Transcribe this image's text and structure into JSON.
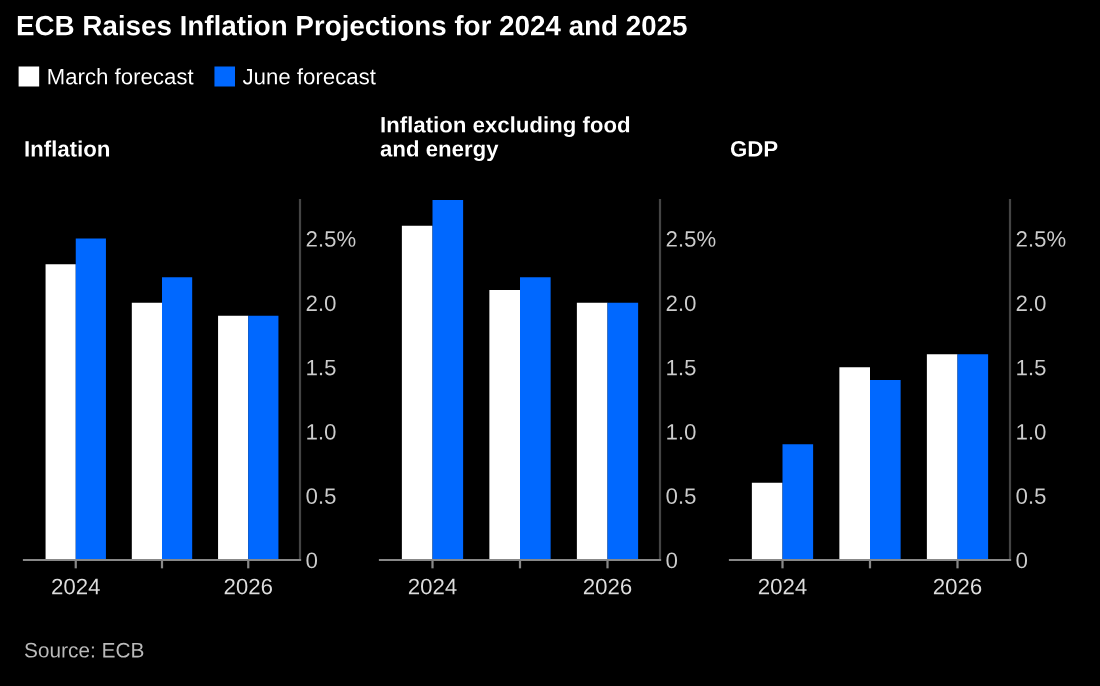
{
  "chart_data": [
    {
      "type": "bar",
      "title": "Inflation",
      "categories": [
        "2024",
        null,
        "2026"
      ],
      "series": [
        {
          "name": "March forecast",
          "color": "#ffffff",
          "values": [
            2.3,
            2.0,
            1.9
          ]
        },
        {
          "name": "June forecast",
          "color": "#0068ff",
          "values": [
            2.5,
            2.2,
            1.9
          ]
        }
      ],
      "ylim": [
        0,
        2.8
      ],
      "yticks": [
        {
          "value": 0,
          "label": "0"
        },
        {
          "value": 0.5,
          "label": "0.5"
        },
        {
          "value": 1.0,
          "label": "1.0"
        },
        {
          "value": 1.5,
          "label": "1.5"
        },
        {
          "value": 2.0,
          "label": "2.0"
        },
        {
          "value": 2.5,
          "label": "2.5%"
        }
      ],
      "legend": "top",
      "annotations": [
        "ECB Raises Inflation Projections for 2024 and 2025",
        "Source: ECB"
      ]
    },
    {
      "type": "bar",
      "title": "Inflation excluding food and energy",
      "categories": [
        "2024",
        null,
        "2026"
      ],
      "series": [
        {
          "color": "#ffffff",
          "values": [
            2.6,
            2.1,
            2.0
          ]
        },
        {
          "color": "#0068ff",
          "values": [
            2.8,
            2.2,
            2.0
          ]
        }
      ],
      "ylim": [
        0,
        2.8
      ],
      "yticks": [
        {
          "value": 0,
          "label": "0"
        },
        {
          "value": 0.5,
          "label": "0.5"
        },
        {
          "value": 1.0,
          "label": "1.0"
        },
        {
          "value": 1.5,
          "label": "1.5"
        },
        {
          "value": 2.0,
          "label": "2.0"
        },
        {
          "value": 2.5,
          "label": "2.5%"
        }
      ]
    },
    {
      "type": "bar",
      "title": "GDP",
      "categories": [
        "2024",
        null,
        "2026"
      ],
      "series": [
        {
          "color": "#ffffff",
          "values": [
            0.6,
            1.5,
            1.6
          ]
        },
        {
          "color": "#0068ff",
          "values": [
            0.9,
            1.4,
            1.6
          ]
        }
      ],
      "ylim": [
        0,
        2.8
      ],
      "yticks": [
        {
          "value": 0,
          "label": "0"
        },
        {
          "value": 0.5,
          "label": "0.5"
        },
        {
          "value": 1.0,
          "label": "1.0"
        },
        {
          "value": 1.5,
          "label": "1.5"
        },
        {
          "value": 2.0,
          "label": "2.0"
        },
        {
          "value": 2.5,
          "label": "2.5%"
        }
      ]
    }
  ]
}
